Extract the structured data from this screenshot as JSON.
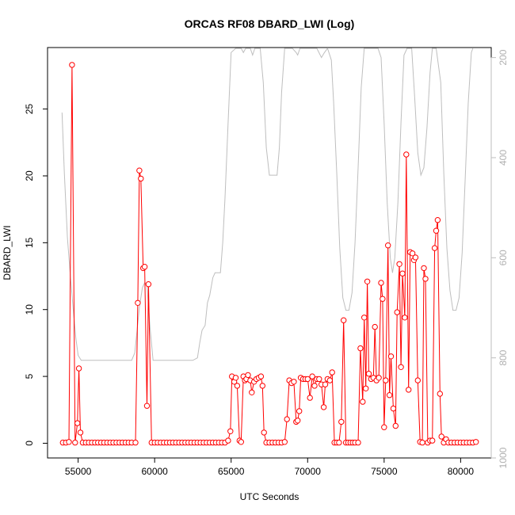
{
  "chart_data": {
    "type": "line",
    "title": "ORCAS RF08 DBARD_LWI (Log)",
    "xlabel": "UTC Seconds",
    "ylabel": "DBARD_LWI",
    "xlim": [
      53000,
      82000
    ],
    "ylim": [
      -1.1,
      29.6
    ],
    "xticks": [
      55000,
      60000,
      65000,
      70000,
      75000,
      80000
    ],
    "yticks": [
      0,
      5,
      10,
      15,
      20,
      25
    ],
    "y2lim": [
      1000,
      180
    ],
    "y2ticks": [
      200,
      400,
      600,
      800,
      1000
    ],
    "grid": false,
    "colors": {
      "primary": "#ff0000",
      "secondary": "#bebebe"
    },
    "series": [
      {
        "role": "primary",
        "markers": "open-circle",
        "points": [
          [
            54000,
            0.05
          ],
          [
            54200,
            0.05
          ],
          [
            54400,
            0.1
          ],
          [
            54600,
            28.3
          ],
          [
            54800,
            0.05
          ],
          [
            54950,
            1.5
          ],
          [
            55050,
            5.6
          ],
          [
            55150,
            0.8
          ],
          [
            55300,
            0.05
          ],
          [
            55500,
            0.05
          ],
          [
            55700,
            0.05
          ],
          [
            55900,
            0.05
          ],
          [
            56100,
            0.05
          ],
          [
            56300,
            0.05
          ],
          [
            56500,
            0.05
          ],
          [
            56700,
            0.05
          ],
          [
            56900,
            0.05
          ],
          [
            57100,
            0.05
          ],
          [
            57300,
            0.05
          ],
          [
            57500,
            0.05
          ],
          [
            57700,
            0.05
          ],
          [
            57900,
            0.05
          ],
          [
            58100,
            0.05
          ],
          [
            58300,
            0.05
          ],
          [
            58500,
            0.05
          ],
          [
            58750,
            0.05
          ],
          [
            58900,
            10.5
          ],
          [
            59000,
            20.4
          ],
          [
            59100,
            19.8
          ],
          [
            59250,
            13.1
          ],
          [
            59350,
            13.2
          ],
          [
            59500,
            2.8
          ],
          [
            59600,
            11.9
          ],
          [
            59800,
            0.05
          ],
          [
            60000,
            0.05
          ],
          [
            60200,
            0.05
          ],
          [
            60400,
            0.05
          ],
          [
            60600,
            0.05
          ],
          [
            60800,
            0.05
          ],
          [
            61000,
            0.05
          ],
          [
            61200,
            0.05
          ],
          [
            61400,
            0.05
          ],
          [
            61600,
            0.05
          ],
          [
            61800,
            0.05
          ],
          [
            62000,
            0.05
          ],
          [
            62200,
            0.05
          ],
          [
            62400,
            0.05
          ],
          [
            62600,
            0.05
          ],
          [
            62800,
            0.05
          ],
          [
            63000,
            0.05
          ],
          [
            63200,
            0.05
          ],
          [
            63400,
            0.05
          ],
          [
            63600,
            0.05
          ],
          [
            63800,
            0.05
          ],
          [
            64000,
            0.05
          ],
          [
            64200,
            0.05
          ],
          [
            64400,
            0.05
          ],
          [
            64600,
            0.05
          ],
          [
            64800,
            0.2
          ],
          [
            64950,
            0.9
          ],
          [
            65050,
            5.0
          ],
          [
            65200,
            4.6
          ],
          [
            65300,
            4.9
          ],
          [
            65400,
            4.3
          ],
          [
            65550,
            0.2
          ],
          [
            65650,
            0.1
          ],
          [
            65800,
            5.0
          ],
          [
            65900,
            4.7
          ],
          [
            66000,
            4.8
          ],
          [
            66100,
            5.1
          ],
          [
            66250,
            4.7
          ],
          [
            66350,
            3.8
          ],
          [
            66500,
            4.6
          ],
          [
            66650,
            4.8
          ],
          [
            66800,
            4.9
          ],
          [
            66950,
            5.0
          ],
          [
            67050,
            4.3
          ],
          [
            67150,
            0.8
          ],
          [
            67300,
            0.05
          ],
          [
            67500,
            0.05
          ],
          [
            67700,
            0.05
          ],
          [
            67900,
            0.05
          ],
          [
            68100,
            0.05
          ],
          [
            68300,
            0.05
          ],
          [
            68500,
            0.1
          ],
          [
            68650,
            1.8
          ],
          [
            68800,
            4.7
          ],
          [
            68950,
            4.5
          ],
          [
            69100,
            4.6
          ],
          [
            69250,
            1.6
          ],
          [
            69350,
            1.7
          ],
          [
            69450,
            2.4
          ],
          [
            69550,
            4.9
          ],
          [
            69700,
            4.8
          ],
          [
            69850,
            4.8
          ],
          [
            70000,
            4.8
          ],
          [
            70150,
            3.4
          ],
          [
            70300,
            5.0
          ],
          [
            70450,
            4.3
          ],
          [
            70600,
            4.8
          ],
          [
            70750,
            4.8
          ],
          [
            70900,
            4.4
          ],
          [
            71050,
            2.7
          ],
          [
            71150,
            4.4
          ],
          [
            71300,
            4.8
          ],
          [
            71450,
            4.7
          ],
          [
            71600,
            5.3
          ],
          [
            71750,
            0.05
          ],
          [
            71900,
            0.05
          ],
          [
            72050,
            0.05
          ],
          [
            72200,
            1.6
          ],
          [
            72350,
            9.2
          ],
          [
            72500,
            0.05
          ],
          [
            72650,
            0.05
          ],
          [
            72800,
            0.05
          ],
          [
            72950,
            0.05
          ],
          [
            73100,
            0.05
          ],
          [
            73300,
            0.05
          ],
          [
            73450,
            7.1
          ],
          [
            73600,
            3.1
          ],
          [
            73700,
            9.4
          ],
          [
            73800,
            4.1
          ],
          [
            73900,
            12.1
          ],
          [
            74000,
            5.2
          ],
          [
            74150,
            4.8
          ],
          [
            74300,
            4.9
          ],
          [
            74400,
            8.7
          ],
          [
            74500,
            4.7
          ],
          [
            74650,
            4.9
          ],
          [
            74800,
            12.0
          ],
          [
            74900,
            10.8
          ],
          [
            75000,
            1.2
          ],
          [
            75100,
            4.7
          ],
          [
            75250,
            14.8
          ],
          [
            75350,
            3.6
          ],
          [
            75450,
            6.5
          ],
          [
            75600,
            2.6
          ],
          [
            75750,
            1.3
          ],
          [
            75850,
            9.8
          ],
          [
            76000,
            13.4
          ],
          [
            76100,
            5.7
          ],
          [
            76200,
            12.7
          ],
          [
            76350,
            9.4
          ],
          [
            76450,
            21.6
          ],
          [
            76600,
            4.0
          ],
          [
            76700,
            14.3
          ],
          [
            76850,
            14.2
          ],
          [
            76950,
            13.7
          ],
          [
            77050,
            13.9
          ],
          [
            77200,
            4.7
          ],
          [
            77350,
            0.1
          ],
          [
            77500,
            0.05
          ],
          [
            77600,
            13.1
          ],
          [
            77700,
            12.3
          ],
          [
            77850,
            0.05
          ],
          [
            78000,
            0.2
          ],
          [
            78150,
            0.2
          ],
          [
            78300,
            14.6
          ],
          [
            78400,
            15.9
          ],
          [
            78500,
            16.7
          ],
          [
            78650,
            3.7
          ],
          [
            78750,
            0.5
          ],
          [
            78900,
            0.05
          ],
          [
            79050,
            0.3
          ],
          [
            79200,
            0.05
          ],
          [
            79400,
            0.05
          ],
          [
            79600,
            0.05
          ],
          [
            79800,
            0.05
          ],
          [
            80000,
            0.05
          ],
          [
            80200,
            0.05
          ],
          [
            80400,
            0.05
          ],
          [
            80600,
            0.05
          ],
          [
            80800,
            0.05
          ],
          [
            81000,
            0.1
          ]
        ]
      },
      {
        "role": "secondary",
        "markers": "none",
        "axis": "right",
        "points": [
          [
            53950,
            310
          ],
          [
            54100,
            430
          ],
          [
            54300,
            560
          ],
          [
            54500,
            640
          ],
          [
            54700,
            710
          ],
          [
            54850,
            760
          ],
          [
            55000,
            795
          ],
          [
            55200,
            805
          ],
          [
            55600,
            805
          ],
          [
            56500,
            805
          ],
          [
            57500,
            805
          ],
          [
            58500,
            805
          ],
          [
            58700,
            790
          ],
          [
            58850,
            745
          ],
          [
            59000,
            700
          ],
          [
            59200,
            660
          ],
          [
            59350,
            650
          ],
          [
            59500,
            655
          ],
          [
            59700,
            740
          ],
          [
            59900,
            805
          ],
          [
            60500,
            805
          ],
          [
            61500,
            805
          ],
          [
            62500,
            805
          ],
          [
            62800,
            800
          ],
          [
            62950,
            770
          ],
          [
            63100,
            745
          ],
          [
            63300,
            735
          ],
          [
            63450,
            690
          ],
          [
            63600,
            675
          ],
          [
            63800,
            640
          ],
          [
            63950,
            630
          ],
          [
            64300,
            630
          ],
          [
            64450,
            570
          ],
          [
            64600,
            480
          ],
          [
            64800,
            330
          ],
          [
            65000,
            190
          ],
          [
            65300,
            180
          ],
          [
            65650,
            180
          ],
          [
            65800,
            190
          ],
          [
            65950,
            180
          ],
          [
            66250,
            180
          ],
          [
            66400,
            195
          ],
          [
            66550,
            180
          ],
          [
            66900,
            180
          ],
          [
            67100,
            250
          ],
          [
            67300,
            380
          ],
          [
            67500,
            435
          ],
          [
            67700,
            435
          ],
          [
            68000,
            435
          ],
          [
            68150,
            380
          ],
          [
            68300,
            270
          ],
          [
            68500,
            180
          ],
          [
            69000,
            180
          ],
          [
            69250,
            190
          ],
          [
            69350,
            195
          ],
          [
            69500,
            180
          ],
          [
            69800,
            180
          ],
          [
            70200,
            180
          ],
          [
            70600,
            180
          ],
          [
            70900,
            200
          ],
          [
            71100,
            190
          ],
          [
            71300,
            180
          ],
          [
            71550,
            205
          ],
          [
            71700,
            290
          ],
          [
            71900,
            430
          ],
          [
            72100,
            580
          ],
          [
            72300,
            680
          ],
          [
            72500,
            705
          ],
          [
            72700,
            705
          ],
          [
            72900,
            670
          ],
          [
            73100,
            570
          ],
          [
            73300,
            420
          ],
          [
            73500,
            260
          ],
          [
            73700,
            180
          ],
          [
            74200,
            180
          ],
          [
            74600,
            180
          ],
          [
            74800,
            200
          ],
          [
            75000,
            330
          ],
          [
            75200,
            490
          ],
          [
            75400,
            600
          ],
          [
            75550,
            630
          ],
          [
            75700,
            600
          ],
          [
            75900,
            490
          ],
          [
            76100,
            330
          ],
          [
            76300,
            195
          ],
          [
            76500,
            180
          ],
          [
            76800,
            180
          ],
          [
            77000,
            280
          ],
          [
            77200,
            390
          ],
          [
            77400,
            435
          ],
          [
            77600,
            420
          ],
          [
            77800,
            340
          ],
          [
            78000,
            230
          ],
          [
            78150,
            180
          ],
          [
            78400,
            180
          ],
          [
            78700,
            250
          ],
          [
            78900,
            430
          ],
          [
            79100,
            580
          ],
          [
            79300,
            665
          ],
          [
            79500,
            705
          ],
          [
            79700,
            705
          ],
          [
            79900,
            680
          ],
          [
            80100,
            590
          ],
          [
            80300,
            440
          ],
          [
            80500,
            290
          ],
          [
            80700,
            190
          ],
          [
            80800,
            150
          ]
        ]
      }
    ]
  }
}
